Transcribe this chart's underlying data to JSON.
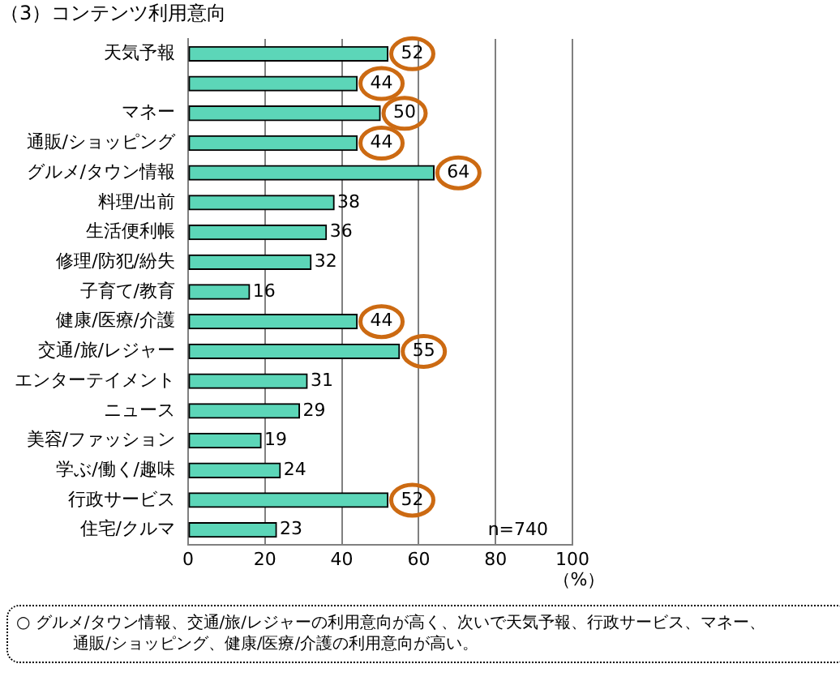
{
  "chart_data": {
    "type": "bar",
    "orientation": "horizontal",
    "title": "（3）コンテンツ利用意向",
    "xlabel": "（%）",
    "categories": [
      "天気予報",
      null,
      "マネー",
      "通販/ショッピング",
      "グルメ/タウン情報",
      "料理/出前",
      "生活便利帳",
      "修理/防犯/紛失",
      "子育て/教育",
      "健康/医療/介護",
      "交通/旅/レジャー",
      "エンターテイメント",
      "ニュース",
      "美容/ファッション",
      "学ぶ/働く/趣味",
      "行政サービス",
      "住宅/クルマ"
    ],
    "values": [
      52,
      44,
      50,
      44,
      64,
      38,
      36,
      32,
      16,
      44,
      55,
      31,
      29,
      19,
      24,
      52,
      23
    ],
    "value_labels": [
      null,
      null,
      null,
      null,
      null,
      "38",
      "36",
      "32",
      "16",
      null,
      null,
      "31",
      "29",
      "19",
      "24",
      null,
      "23"
    ],
    "color": "#5cd6b8",
    "xlim": [
      0,
      100
    ],
    "xticks": [
      0,
      20,
      40,
      60,
      80,
      100
    ],
    "grid": "x",
    "annotations": [
      {
        "text": "52",
        "x": 52,
        "y": "天気予報"
      },
      {
        "text": "44",
        "x": 44
      },
      {
        "text": "50",
        "x": 50,
        "y": "マネー"
      },
      {
        "text": "44",
        "x": 44,
        "y": "通販/ショッピング"
      },
      {
        "text": "64",
        "x": 64,
        "y": "グルメ/タウン情報"
      },
      {
        "text": "44",
        "x": 44,
        "y": "健康/医療/介護"
      },
      {
        "text": "55",
        "x": 55,
        "y": "交通/旅/レジャー"
      },
      {
        "text": "52",
        "x": 52,
        "y": "行政サービス"
      },
      "n=740",
      "○ グルメ/タウン情報、交通/旅/レジャーの利用意向が高く、次いで天気予報、行政サービス、マネー、通販/ショッピング、健康/医療/介護の利用意向が高い。"
    ]
  }
}
